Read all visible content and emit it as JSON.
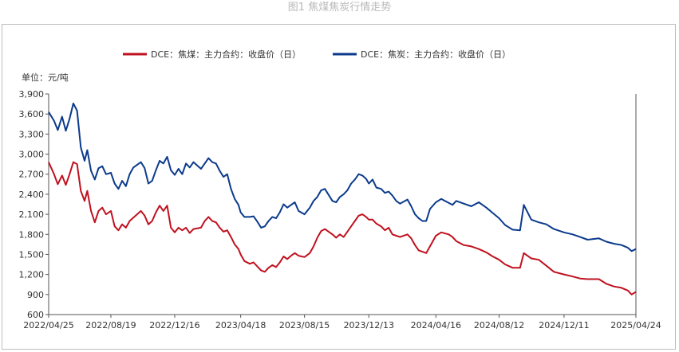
{
  "figure_title": "图1 焦煤焦炭行情走势",
  "chart_data": {
    "type": "line",
    "unit_label": "单位：元/吨",
    "ylim": [
      600,
      3900
    ],
    "y_ticks": [
      "600",
      "900",
      "1,200",
      "1,500",
      "1,800",
      "2,100",
      "2,400",
      "2,700",
      "3,000",
      "3,300",
      "3,600",
      "3,900"
    ],
    "y_tick_values": [
      600,
      900,
      1200,
      1500,
      1800,
      2100,
      2400,
      2700,
      3000,
      3300,
      3600,
      3900
    ],
    "x_ticks": [
      "2022/04/25",
      "2022/08/19",
      "2022/12/16",
      "2023/04/18",
      "2023/08/15",
      "2023/12/13",
      "2024/04/16",
      "2024/08/12",
      "2024/12/11",
      "2025/04/24"
    ],
    "xlim": [
      "2022/04/25",
      "2025/04/24"
    ],
    "grid": false,
    "legend_position": "top-center",
    "series": [
      {
        "name": "DCE：焦煤：主力合约：收盘价（日）",
        "color": "#c0111f",
        "points": [
          [
            "2022/04/25",
            2880
          ],
          [
            "2022/05/05",
            2700
          ],
          [
            "2022/05/12",
            2550
          ],
          [
            "2022/05/20",
            2680
          ],
          [
            "2022/05/27",
            2540
          ],
          [
            "2022/06/03",
            2700
          ],
          [
            "2022/06/10",
            2880
          ],
          [
            "2022/06/17",
            2850
          ],
          [
            "2022/06/24",
            2450
          ],
          [
            "2022/07/01",
            2300
          ],
          [
            "2022/07/06",
            2450
          ],
          [
            "2022/07/13",
            2150
          ],
          [
            "2022/07/20",
            1980
          ],
          [
            "2022/07/27",
            2150
          ],
          [
            "2022/08/03",
            2200
          ],
          [
            "2022/08/10",
            2100
          ],
          [
            "2022/08/19",
            2150
          ],
          [
            "2022/08/26",
            1920
          ],
          [
            "2022/09/02",
            1860
          ],
          [
            "2022/09/09",
            1950
          ],
          [
            "2022/09/16",
            1900
          ],
          [
            "2022/09/23",
            2000
          ],
          [
            "2022/09/30",
            2050
          ],
          [
            "2022/10/14",
            2150
          ],
          [
            "2022/10/21",
            2080
          ],
          [
            "2022/10/28",
            1950
          ],
          [
            "2022/11/04",
            2000
          ],
          [
            "2022/11/11",
            2130
          ],
          [
            "2022/11/18",
            2230
          ],
          [
            "2022/11/25",
            2150
          ],
          [
            "2022/12/02",
            2230
          ],
          [
            "2022/12/09",
            1900
          ],
          [
            "2022/12/16",
            1830
          ],
          [
            "2022/12/23",
            1900
          ],
          [
            "2022/12/30",
            1860
          ],
          [
            "2023/01/06",
            1900
          ],
          [
            "2023/01/13",
            1820
          ],
          [
            "2023/01/20",
            1880
          ],
          [
            "2023/02/03",
            1900
          ],
          [
            "2023/02/10",
            2000
          ],
          [
            "2023/02/17",
            2060
          ],
          [
            "2023/02/24",
            2000
          ],
          [
            "2023/03/03",
            1980
          ],
          [
            "2023/03/10",
            1900
          ],
          [
            "2023/03/17",
            1840
          ],
          [
            "2023/03/24",
            1860
          ],
          [
            "2023/03/31",
            1760
          ],
          [
            "2023/04/07",
            1650
          ],
          [
            "2023/04/14",
            1580
          ],
          [
            "2023/04/18",
            1500
          ],
          [
            "2023/04/25",
            1400
          ],
          [
            "2023/05/05",
            1360
          ],
          [
            "2023/05/12",
            1380
          ],
          [
            "2023/05/19",
            1320
          ],
          [
            "2023/05/26",
            1260
          ],
          [
            "2023/06/02",
            1240
          ],
          [
            "2023/06/09",
            1300
          ],
          [
            "2023/06/16",
            1340
          ],
          [
            "2023/06/23",
            1310
          ],
          [
            "2023/06/30",
            1380
          ],
          [
            "2023/07/07",
            1470
          ],
          [
            "2023/07/14",
            1430
          ],
          [
            "2023/07/21",
            1480
          ],
          [
            "2023/07/28",
            1520
          ],
          [
            "2023/08/04",
            1480
          ],
          [
            "2023/08/15",
            1460
          ],
          [
            "2023/08/25",
            1520
          ],
          [
            "2023/09/01",
            1620
          ],
          [
            "2023/09/08",
            1750
          ],
          [
            "2023/09/15",
            1850
          ],
          [
            "2023/09/22",
            1880
          ],
          [
            "2023/10/06",
            1800
          ],
          [
            "2023/10/13",
            1750
          ],
          [
            "2023/10/20",
            1800
          ],
          [
            "2023/10/27",
            1760
          ],
          [
            "2023/11/03",
            1840
          ],
          [
            "2023/11/10",
            1920
          ],
          [
            "2023/11/17",
            2000
          ],
          [
            "2023/11/24",
            2080
          ],
          [
            "2023/12/01",
            2100
          ],
          [
            "2023/12/08",
            2060
          ],
          [
            "2023/12/13",
            2020
          ],
          [
            "2023/12/20",
            2020
          ],
          [
            "2023/12/27",
            1960
          ],
          [
            "2024/01/05",
            1920
          ],
          [
            "2024/01/12",
            1860
          ],
          [
            "2024/01/19",
            1900
          ],
          [
            "2024/01/26",
            1800
          ],
          [
            "2024/02/02",
            1780
          ],
          [
            "2024/02/09",
            1760
          ],
          [
            "2024/02/23",
            1800
          ],
          [
            "2024/03/01",
            1740
          ],
          [
            "2024/03/08",
            1640
          ],
          [
            "2024/03/15",
            1560
          ],
          [
            "2024/03/22",
            1540
          ],
          [
            "2024/03/29",
            1520
          ],
          [
            "2024/04/05",
            1620
          ],
          [
            "2024/04/16",
            1780
          ],
          [
            "2024/04/26",
            1830
          ],
          [
            "2024/05/10",
            1800
          ],
          [
            "2024/05/17",
            1760
          ],
          [
            "2024/05/24",
            1700
          ],
          [
            "2024/06/07",
            1640
          ],
          [
            "2024/06/21",
            1620
          ],
          [
            "2024/07/05",
            1580
          ],
          [
            "2024/07/19",
            1530
          ],
          [
            "2024/07/31",
            1470
          ],
          [
            "2024/08/12",
            1420
          ],
          [
            "2024/08/23",
            1350
          ],
          [
            "2024/09/06",
            1300
          ],
          [
            "2024/09/20",
            1300
          ],
          [
            "2024/09/27",
            1520
          ],
          [
            "2024/10/11",
            1440
          ],
          [
            "2024/10/25",
            1420
          ],
          [
            "2024/11/08",
            1330
          ],
          [
            "2024/11/22",
            1240
          ],
          [
            "2024/12/11",
            1200
          ],
          [
            "2024/12/27",
            1170
          ],
          [
            "2025/01/10",
            1140
          ],
          [
            "2025/01/24",
            1130
          ],
          [
            "2025/02/14",
            1130
          ],
          [
            "2025/02/28",
            1060
          ],
          [
            "2025/03/14",
            1020
          ],
          [
            "2025/03/28",
            1000
          ],
          [
            "2025/04/09",
            960
          ],
          [
            "2025/04/16",
            900
          ],
          [
            "2025/04/24",
            940
          ]
        ]
      },
      {
        "name": "DCE：焦炭：主力合约：收盘价（日）",
        "color": "#0b3a8c",
        "points": [
          [
            "2022/04/25",
            3630
          ],
          [
            "2022/05/05",
            3500
          ],
          [
            "2022/05/12",
            3360
          ],
          [
            "2022/05/20",
            3560
          ],
          [
            "2022/05/27",
            3350
          ],
          [
            "2022/06/03",
            3530
          ],
          [
            "2022/06/10",
            3760
          ],
          [
            "2022/06/17",
            3650
          ],
          [
            "2022/06/24",
            3100
          ],
          [
            "2022/07/01",
            2900
          ],
          [
            "2022/07/06",
            3060
          ],
          [
            "2022/07/13",
            2750
          ],
          [
            "2022/07/20",
            2620
          ],
          [
            "2022/07/27",
            2790
          ],
          [
            "2022/08/03",
            2820
          ],
          [
            "2022/08/10",
            2700
          ],
          [
            "2022/08/19",
            2720
          ],
          [
            "2022/08/26",
            2560
          ],
          [
            "2022/09/02",
            2480
          ],
          [
            "2022/09/09",
            2600
          ],
          [
            "2022/09/16",
            2520
          ],
          [
            "2022/09/23",
            2700
          ],
          [
            "2022/09/30",
            2800
          ],
          [
            "2022/10/14",
            2880
          ],
          [
            "2022/10/21",
            2790
          ],
          [
            "2022/10/28",
            2560
          ],
          [
            "2022/11/04",
            2600
          ],
          [
            "2022/11/11",
            2760
          ],
          [
            "2022/11/18",
            2900
          ],
          [
            "2022/11/25",
            2860
          ],
          [
            "2022/12/02",
            2960
          ],
          [
            "2022/12/09",
            2760
          ],
          [
            "2022/12/16",
            2690
          ],
          [
            "2022/12/23",
            2780
          ],
          [
            "2022/12/30",
            2700
          ],
          [
            "2023/01/06",
            2860
          ],
          [
            "2023/01/13",
            2800
          ],
          [
            "2023/01/20",
            2880
          ],
          [
            "2023/02/03",
            2780
          ],
          [
            "2023/02/10",
            2860
          ],
          [
            "2023/02/17",
            2940
          ],
          [
            "2023/02/24",
            2880
          ],
          [
            "2023/03/03",
            2860
          ],
          [
            "2023/03/10",
            2750
          ],
          [
            "2023/03/17",
            2660
          ],
          [
            "2023/03/24",
            2700
          ],
          [
            "2023/03/31",
            2480
          ],
          [
            "2023/04/07",
            2330
          ],
          [
            "2023/04/14",
            2240
          ],
          [
            "2023/04/18",
            2130
          ],
          [
            "2023/04/25",
            2060
          ],
          [
            "2023/05/05",
            2060
          ],
          [
            "2023/05/12",
            2070
          ],
          [
            "2023/05/19",
            1990
          ],
          [
            "2023/05/26",
            1900
          ],
          [
            "2023/06/02",
            1920
          ],
          [
            "2023/06/09",
            2000
          ],
          [
            "2023/06/16",
            2060
          ],
          [
            "2023/06/23",
            2040
          ],
          [
            "2023/06/30",
            2130
          ],
          [
            "2023/07/07",
            2250
          ],
          [
            "2023/07/14",
            2200
          ],
          [
            "2023/07/21",
            2240
          ],
          [
            "2023/07/28",
            2280
          ],
          [
            "2023/08/04",
            2150
          ],
          [
            "2023/08/15",
            2100
          ],
          [
            "2023/08/25",
            2200
          ],
          [
            "2023/09/01",
            2300
          ],
          [
            "2023/09/08",
            2360
          ],
          [
            "2023/09/15",
            2460
          ],
          [
            "2023/09/22",
            2480
          ],
          [
            "2023/10/06",
            2300
          ],
          [
            "2023/10/13",
            2280
          ],
          [
            "2023/10/20",
            2360
          ],
          [
            "2023/10/27",
            2400
          ],
          [
            "2023/11/03",
            2460
          ],
          [
            "2023/11/10",
            2560
          ],
          [
            "2023/11/17",
            2620
          ],
          [
            "2023/11/24",
            2700
          ],
          [
            "2023/12/01",
            2680
          ],
          [
            "2023/12/08",
            2630
          ],
          [
            "2023/12/13",
            2560
          ],
          [
            "2023/12/20",
            2620
          ],
          [
            "2023/12/27",
            2500
          ],
          [
            "2024/01/05",
            2480
          ],
          [
            "2024/01/12",
            2420
          ],
          [
            "2024/01/19",
            2440
          ],
          [
            "2024/01/26",
            2380
          ],
          [
            "2024/02/02",
            2300
          ],
          [
            "2024/02/09",
            2260
          ],
          [
            "2024/02/23",
            2320
          ],
          [
            "2024/03/01",
            2220
          ],
          [
            "2024/03/08",
            2100
          ],
          [
            "2024/03/15",
            2040
          ],
          [
            "2024/03/22",
            2000
          ],
          [
            "2024/03/29",
            2000
          ],
          [
            "2024/04/05",
            2180
          ],
          [
            "2024/04/16",
            2280
          ],
          [
            "2024/04/26",
            2330
          ],
          [
            "2024/05/10",
            2270
          ],
          [
            "2024/05/17",
            2240
          ],
          [
            "2024/05/24",
            2300
          ],
          [
            "2024/06/07",
            2260
          ],
          [
            "2024/06/21",
            2220
          ],
          [
            "2024/07/05",
            2280
          ],
          [
            "2024/07/19",
            2200
          ],
          [
            "2024/07/31",
            2120
          ],
          [
            "2024/08/12",
            2040
          ],
          [
            "2024/08/23",
            1940
          ],
          [
            "2024/09/06",
            1870
          ],
          [
            "2024/09/20",
            1860
          ],
          [
            "2024/09/27",
            2240
          ],
          [
            "2024/10/11",
            2020
          ],
          [
            "2024/10/25",
            1980
          ],
          [
            "2024/11/08",
            1950
          ],
          [
            "2024/11/22",
            1880
          ],
          [
            "2024/12/11",
            1830
          ],
          [
            "2024/12/27",
            1800
          ],
          [
            "2025/01/10",
            1760
          ],
          [
            "2025/01/24",
            1720
          ],
          [
            "2025/02/14",
            1740
          ],
          [
            "2025/02/28",
            1690
          ],
          [
            "2025/03/14",
            1660
          ],
          [
            "2025/03/28",
            1640
          ],
          [
            "2025/04/09",
            1600
          ],
          [
            "2025/04/16",
            1550
          ],
          [
            "2025/04/24",
            1580
          ]
        ]
      }
    ]
  }
}
